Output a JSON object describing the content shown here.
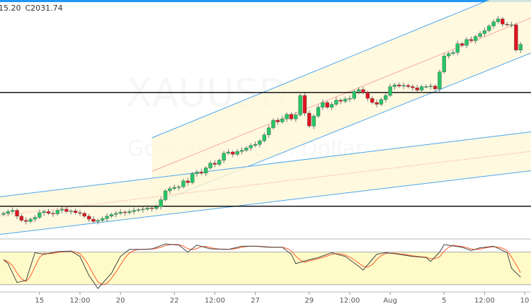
{
  "header": {
    "ohlc_fragment": "15.20",
    "close_label": "C2031.74"
  },
  "watermark": {
    "symbol": "XAUUSD",
    "description": "Gold Spot / U.S. Dollar"
  },
  "colors": {
    "up": "#26c665",
    "down": "#e0131f",
    "wick": "#777777",
    "channel_line": "#4aa6ec",
    "channel_fill": "#fff8d8",
    "midline": "#f28b82",
    "hline": "#000000",
    "stoch_k": "#444444",
    "stoch_d": "#ff5a2a",
    "stoch_band": "#fffbc8",
    "accent": "#2196f3"
  },
  "chart_data": [
    {
      "type": "candlestick",
      "symbol": "XAUUSD",
      "last_close": 2031.74,
      "ylim": [
        1700,
        2110
      ],
      "x_ticks": [
        {
          "index": 8,
          "label": "15"
        },
        {
          "index": 17,
          "label": "12:00"
        },
        {
          "index": 26,
          "label": "20"
        },
        {
          "index": 38,
          "label": "22"
        },
        {
          "index": 47,
          "label": "12:00"
        },
        {
          "index": 56,
          "label": "27"
        },
        {
          "index": 68,
          "label": "29"
        },
        {
          "index": 77,
          "label": "12:00"
        },
        {
          "index": 86,
          "label": "Aug"
        },
        {
          "index": 98,
          "label": "5"
        },
        {
          "index": 107,
          "label": "12:00"
        },
        {
          "index": 116,
          "label": "10"
        }
      ],
      "close": [
        1745,
        1748,
        1750,
        1740,
        1733,
        1731,
        1735,
        1738,
        1746,
        1748,
        1745,
        1744,
        1750,
        1752,
        1748,
        1749,
        1746,
        1745,
        1740,
        1735,
        1731,
        1733,
        1736,
        1740,
        1743,
        1745,
        1747,
        1746,
        1748,
        1750,
        1751,
        1752,
        1754,
        1753,
        1756,
        1768,
        1783,
        1787,
        1789,
        1790,
        1800,
        1797,
        1812,
        1815,
        1813,
        1822,
        1830,
        1828,
        1835,
        1847,
        1849,
        1845,
        1850,
        1852,
        1856,
        1860,
        1862,
        1868,
        1878,
        1890,
        1903,
        1900,
        1905,
        1913,
        1905,
        1912,
        1945,
        1915,
        1893,
        1910,
        1925,
        1933,
        1925,
        1930,
        1937,
        1935,
        1939,
        1940,
        1952,
        1955,
        1950,
        1940,
        1933,
        1930,
        1938,
        1945,
        1960,
        1963,
        1961,
        1962,
        1960,
        1958,
        1954,
        1960,
        1960,
        1961,
        1956,
        1985,
        2012,
        2016,
        2018,
        2033,
        2030,
        2040,
        2038,
        2045,
        2050,
        2055,
        2063,
        2070,
        2075,
        2066,
        2065,
        2065,
        2022,
        2031.74
      ],
      "horizontal_levels": [
        1950,
        1757
      ],
      "channels": [
        {
          "start_index": 33,
          "end_index": 115,
          "upper": [
            1873,
            2129
          ],
          "lower": [
            1759,
            2010
          ]
        },
        {
          "start_index": 0,
          "end_index": 115,
          "upper": [
            1773,
            1881
          ],
          "lower": [
            1709,
            1815
          ]
        }
      ]
    },
    {
      "type": "line",
      "indicator": "stochastic",
      "ylim": [
        0,
        100
      ],
      "band": [
        20,
        80
      ],
      "k_points": [
        [
          0,
          66
        ],
        [
          1,
          59
        ],
        [
          3,
          24
        ],
        [
          5,
          28
        ],
        [
          7,
          79
        ],
        [
          9,
          76
        ],
        [
          12,
          81
        ],
        [
          15,
          82
        ],
        [
          17,
          72
        ],
        [
          19,
          37
        ],
        [
          21,
          13
        ],
        [
          24,
          41
        ],
        [
          26,
          72
        ],
        [
          28,
          85
        ],
        [
          31,
          85
        ],
        [
          33,
          86
        ],
        [
          36,
          95
        ],
        [
          39,
          93
        ],
        [
          41,
          80
        ],
        [
          43,
          93
        ],
        [
          46,
          86
        ],
        [
          50,
          85
        ],
        [
          53,
          91
        ],
        [
          56,
          91
        ],
        [
          59,
          89
        ],
        [
          62,
          89
        ],
        [
          64,
          76
        ],
        [
          65,
          59
        ],
        [
          68,
          66
        ],
        [
          70,
          70
        ],
        [
          73,
          79
        ],
        [
          76,
          72
        ],
        [
          79,
          54
        ],
        [
          80,
          47
        ],
        [
          83,
          76
        ],
        [
          85,
          79
        ],
        [
          88,
          76
        ],
        [
          91,
          72
        ],
        [
          94,
          70
        ],
        [
          95,
          63
        ],
        [
          97,
          80
        ],
        [
          98,
          94
        ],
        [
          102,
          89
        ],
        [
          104,
          83
        ],
        [
          106,
          88
        ],
        [
          109,
          91
        ],
        [
          112,
          79
        ],
        [
          113,
          50
        ],
        [
          115,
          34
        ]
      ]
    }
  ]
}
